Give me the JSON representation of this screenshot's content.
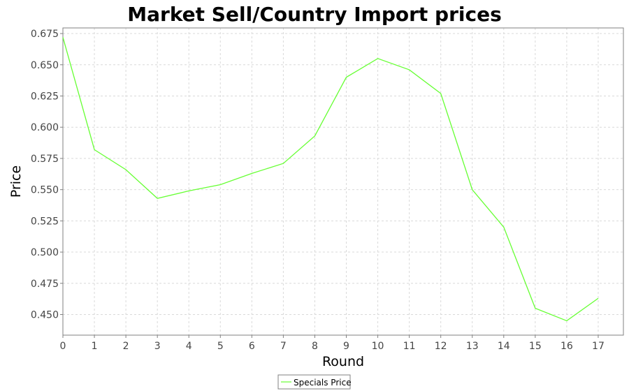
{
  "chart_data": {
    "type": "line",
    "title": "Market Sell/Country Import prices",
    "xlabel": "Round",
    "ylabel": "Price",
    "x": [
      0,
      1,
      2,
      3,
      4,
      5,
      6,
      7,
      8,
      9,
      10,
      11,
      12,
      13,
      14,
      15,
      16,
      17
    ],
    "xlim": [
      0,
      17.8
    ],
    "ylim": [
      0.4335,
      0.6795
    ],
    "yticks": [
      0.45,
      0.475,
      0.5,
      0.525,
      0.55,
      0.575,
      0.6,
      0.625,
      0.65,
      0.675
    ],
    "ytick_labels": [
      "0.450",
      "0.475",
      "0.500",
      "0.525",
      "0.550",
      "0.575",
      "0.600",
      "0.625",
      "0.650",
      "0.675"
    ],
    "xtick_labels": [
      "0",
      "1",
      "2",
      "3",
      "4",
      "5",
      "6",
      "7",
      "8",
      "9",
      "10",
      "11",
      "12",
      "13",
      "14",
      "15",
      "16",
      "17"
    ],
    "grid": true,
    "legend_position": "bottom-center",
    "series": [
      {
        "name": "Specials Price",
        "color": "#66ff33",
        "values": [
          0.672,
          0.582,
          0.566,
          0.543,
          0.549,
          0.554,
          0.563,
          0.571,
          0.593,
          0.64,
          0.655,
          0.646,
          0.627,
          0.55,
          0.52,
          0.455,
          0.445,
          0.463
        ]
      }
    ]
  }
}
